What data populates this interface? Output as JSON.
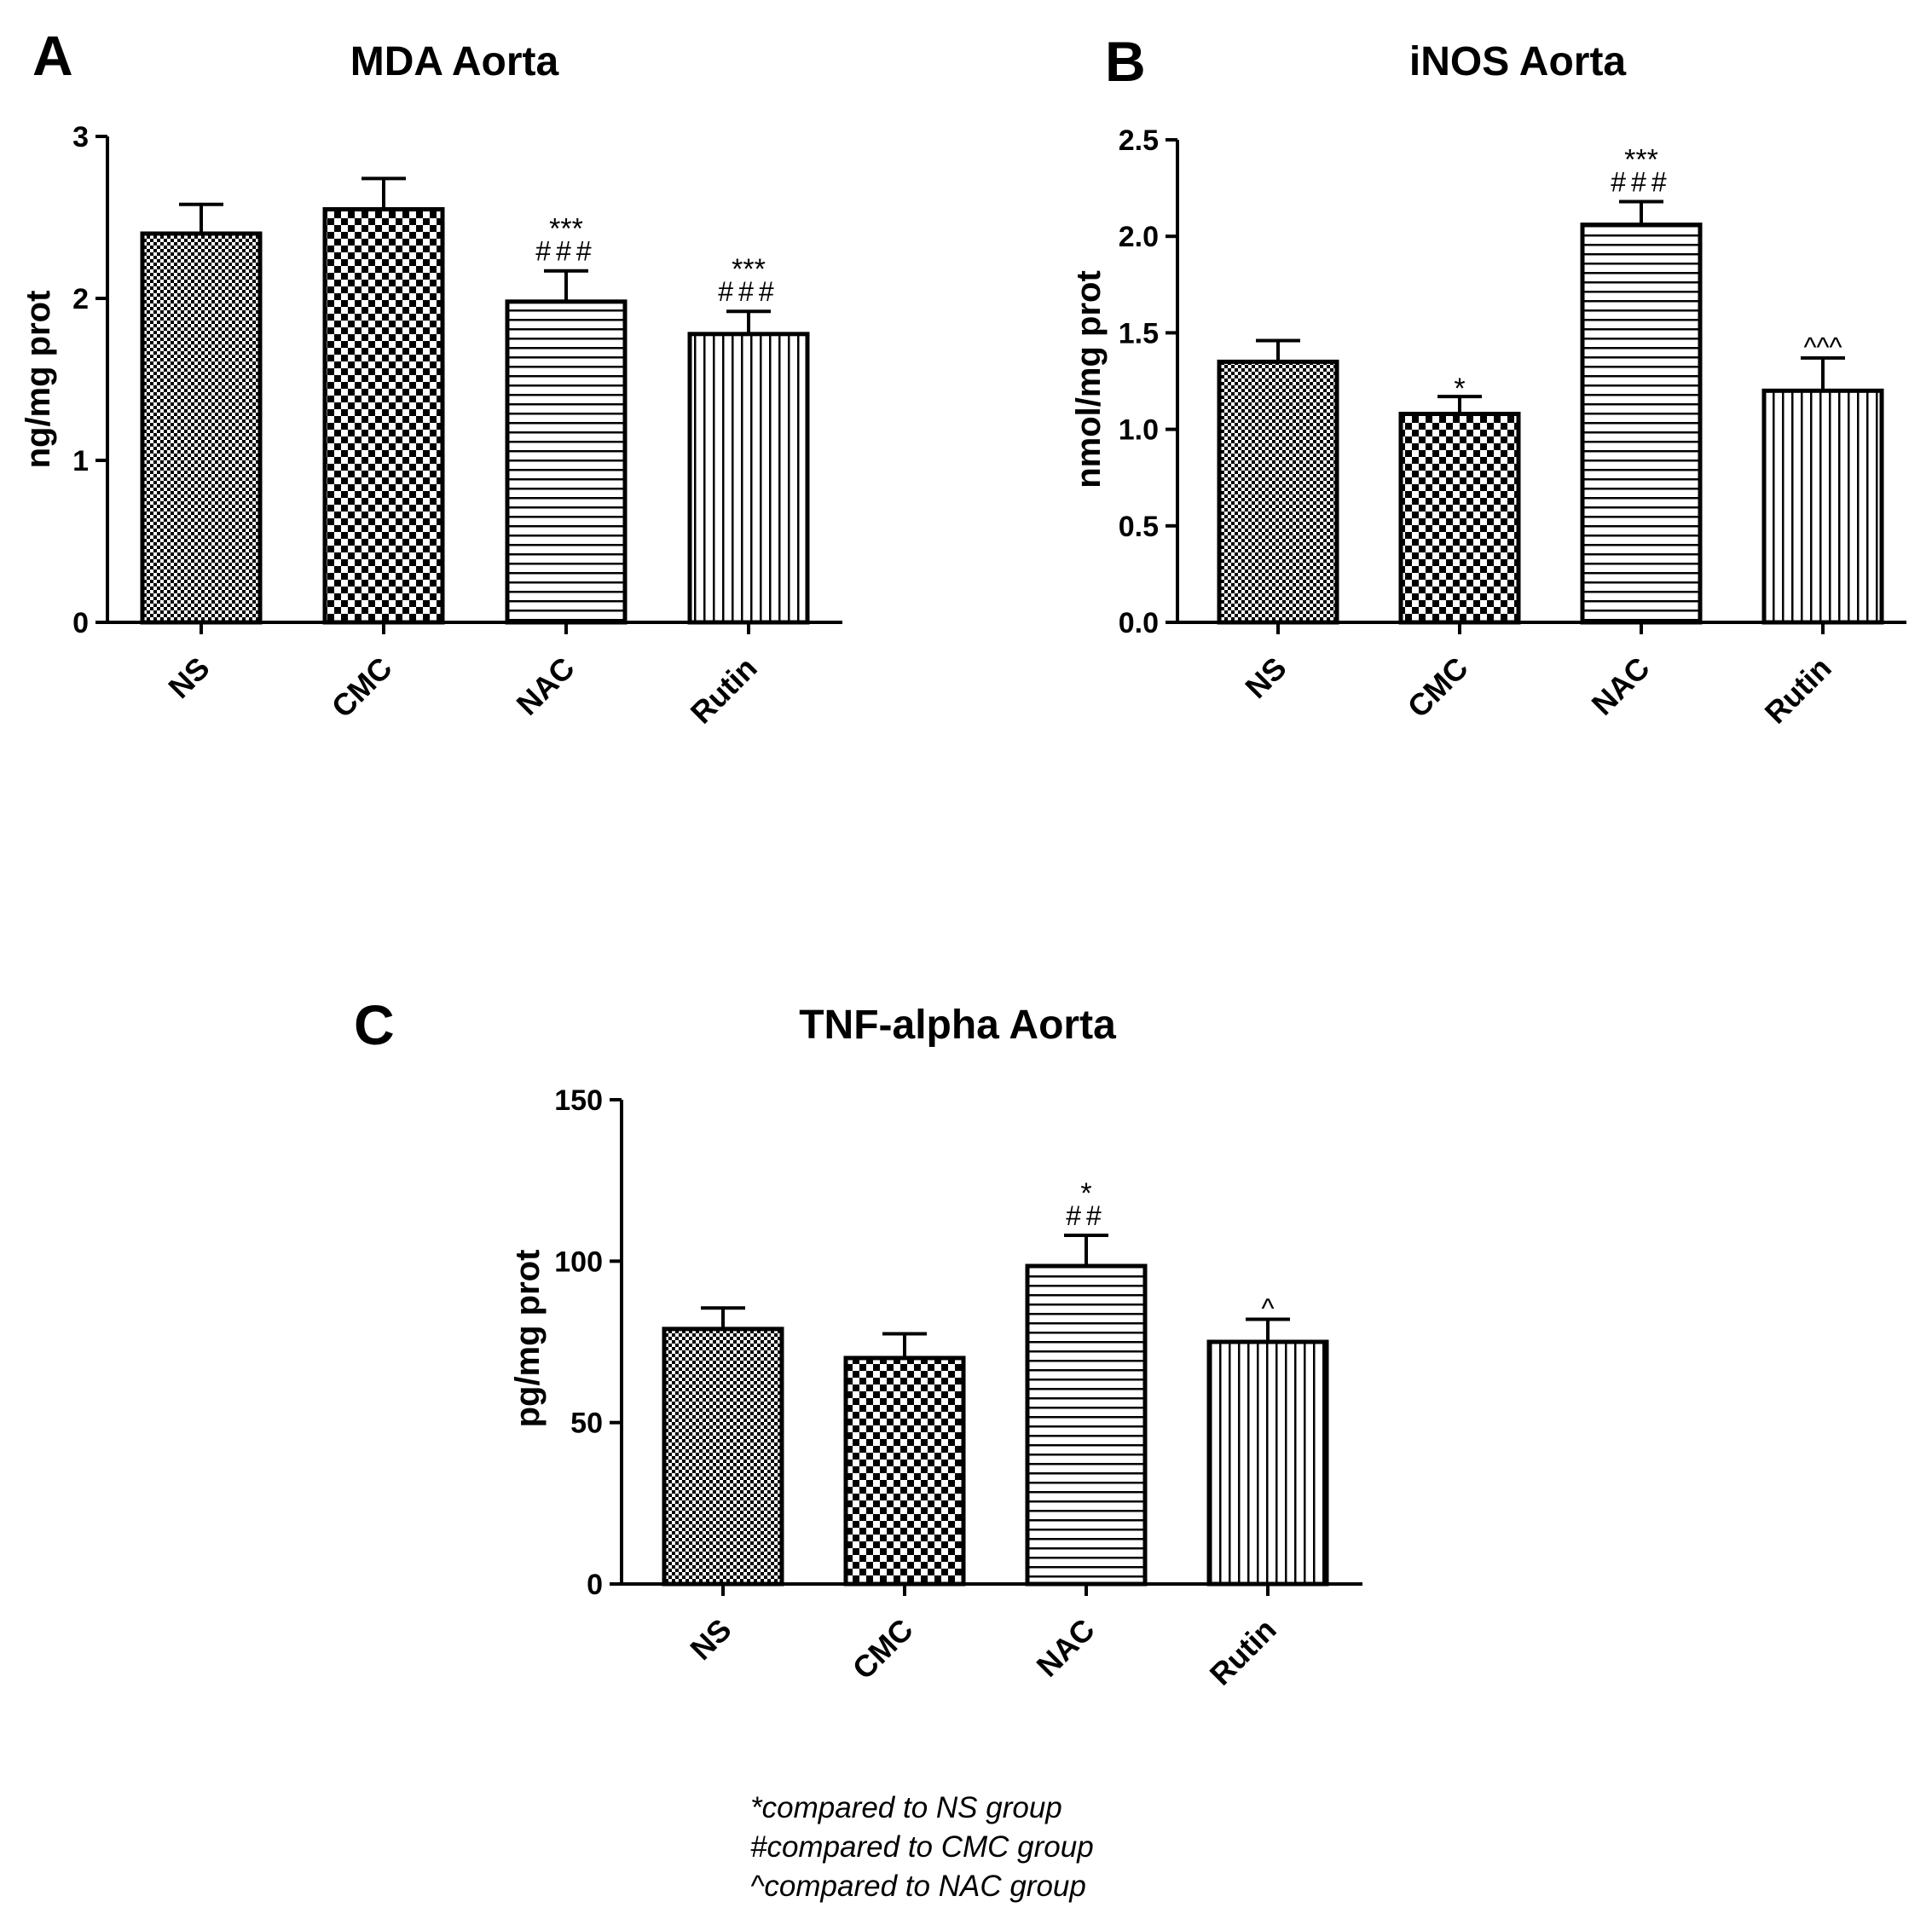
{
  "chart_data": [
    {
      "panel": "A",
      "type": "bar",
      "title": "MDA Aorta",
      "xlabel": "",
      "ylabel": "ng/mg prot",
      "categories": [
        "NS",
        "CMC",
        "NAC",
        "Rutin"
      ],
      "values": [
        2.4,
        2.55,
        1.98,
        1.78
      ],
      "errors": [
        0.18,
        0.19,
        0.19,
        0.14
      ],
      "patterns": [
        "fine-check",
        "coarse-check",
        "horizontal",
        "vertical"
      ],
      "annotations": [
        [],
        [],
        [
          "***",
          "###"
        ],
        [
          "***",
          "###"
        ]
      ],
      "ylim": [
        0,
        3
      ],
      "yticks": [
        0,
        1,
        2,
        3
      ],
      "ytick_labels": [
        "0",
        "1",
        "2",
        "3"
      ]
    },
    {
      "panel": "B",
      "type": "bar",
      "title": "iNOS Aorta",
      "xlabel": "",
      "ylabel": "nmol/mg prot",
      "categories": [
        "NS",
        "CMC",
        "NAC",
        "Rutin"
      ],
      "values": [
        1.35,
        1.08,
        2.06,
        1.2
      ],
      "errors": [
        0.11,
        0.09,
        0.12,
        0.17
      ],
      "patterns": [
        "fine-check",
        "coarse-check",
        "horizontal",
        "vertical"
      ],
      "annotations": [
        [],
        [
          "*"
        ],
        [
          "***",
          "###"
        ],
        [
          "^^^"
        ]
      ],
      "ylim": [
        0,
        2.5
      ],
      "yticks": [
        0,
        0.5,
        1,
        1.5,
        2,
        2.5
      ],
      "ytick_labels": [
        "0.0",
        "0.5",
        "1.0",
        "1.5",
        "2.0",
        "2.5"
      ]
    },
    {
      "panel": "C",
      "type": "bar",
      "title": "TNF-alpha Aorta",
      "xlabel": "",
      "ylabel": "pg/mg prot",
      "categories": [
        "NS",
        "CMC",
        "NAC",
        "Rutin"
      ],
      "values": [
        79,
        70,
        98.5,
        75
      ],
      "errors": [
        6.5,
        7.5,
        9.5,
        7
      ],
      "patterns": [
        "fine-check",
        "coarse-check",
        "horizontal",
        "vertical"
      ],
      "annotations": [
        [],
        [],
        [
          "*",
          "##"
        ],
        [
          "^"
        ]
      ],
      "ylim": [
        0,
        150
      ],
      "yticks": [
        0,
        50,
        100,
        150
      ],
      "ytick_labels": [
        "0",
        "50",
        "100",
        "150"
      ]
    }
  ],
  "footnotes": [
    "*compared to NS group",
    "#compared to CMC group",
    "^compared to NAC group"
  ],
  "colors": {
    "ink": "#000000",
    "background": "#ffffff"
  }
}
